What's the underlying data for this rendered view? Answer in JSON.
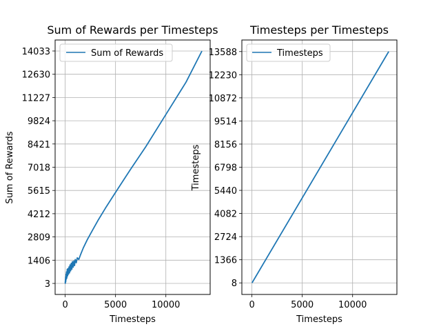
{
  "chart_data": [
    {
      "type": "line",
      "title": "Sum of Rewards per Timesteps",
      "xlabel": "Timesteps",
      "ylabel": "Sum of Rewards",
      "xlim": [
        -1000,
        14400
      ],
      "ylim": [
        -662,
        14698
      ],
      "x_ticks": [
        0,
        5000,
        10000
      ],
      "x_tick_labels": [
        "0",
        "5000",
        "10000"
      ],
      "y_ticks": [
        3,
        1406,
        2809,
        4212,
        5615,
        7018,
        8421,
        9824,
        11227,
        12630,
        14033
      ],
      "y_tick_labels": [
        "3",
        "1406",
        "2809",
        "4212",
        "5615",
        "7018",
        "8421",
        "9824",
        "11227",
        "12630",
        "14033"
      ],
      "grid": true,
      "legend_position": "top-left",
      "colors": {
        "line": "#1f77b4",
        "grid": "#b0b0b0"
      },
      "series": [
        {
          "name": "Sum of Rewards",
          "x": [
            0,
            8,
            14,
            20,
            30,
            40,
            60,
            80,
            100,
            130,
            160,
            200,
            240,
            280,
            330,
            380,
            430,
            480,
            540,
            600,
            660,
            720,
            790,
            860,
            930,
            1000,
            1100,
            1200,
            1350,
            1500,
            1800,
            2200,
            2700,
            3300,
            4000,
            5000,
            6500,
            8000,
            10000,
            12000,
            13580
          ],
          "y": [
            3,
            130,
            10,
            260,
            60,
            400,
            120,
            560,
            250,
            700,
            320,
            860,
            460,
            900,
            560,
            1000,
            640,
            1120,
            760,
            1220,
            860,
            1320,
            980,
            1360,
            1080,
            1450,
            1250,
            1550,
            1450,
            1700,
            2150,
            2650,
            3200,
            3850,
            4550,
            5500,
            6900,
            8250,
            10200,
            12150,
            14033
          ]
        }
      ]
    },
    {
      "type": "line",
      "title": "Timesteps per Timesteps",
      "xlabel": "Timesteps",
      "ylabel": "Timesteps",
      "xlim": [
        -1000,
        14400
      ],
      "ylim": [
        -671,
        14267
      ],
      "x_ticks": [
        0,
        5000,
        10000
      ],
      "x_tick_labels": [
        "0",
        "5000",
        "10000"
      ],
      "y_ticks": [
        8,
        1366,
        2724,
        4082,
        5440,
        6798,
        8156,
        9514,
        10872,
        12230,
        13588
      ],
      "y_tick_labels": [
        "8",
        "1366",
        "2724",
        "4082",
        "5440",
        "6798",
        "8156",
        "9514",
        "10872",
        "12230",
        "13588"
      ],
      "grid": true,
      "legend_position": "top-left",
      "colors": {
        "line": "#1f77b4",
        "grid": "#b0b0b0"
      },
      "series": [
        {
          "name": "Timesteps",
          "x": [
            8,
            13588
          ],
          "y": [
            8,
            13588
          ]
        }
      ]
    }
  ]
}
